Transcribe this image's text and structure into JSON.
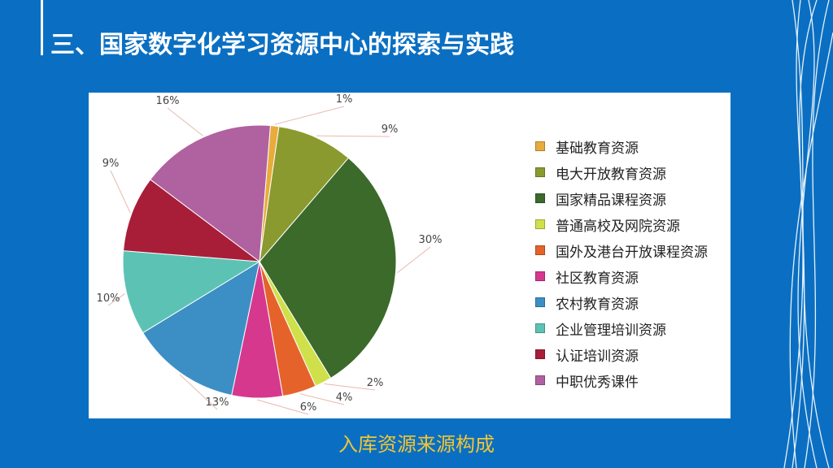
{
  "header": {
    "title": "三、国家数字化学习资源中心的探索与实践"
  },
  "caption": "入库资源来源构成",
  "colors": {
    "background": "#0a6fc2",
    "caption": "#f2c533"
  },
  "chart_data": {
    "type": "pie",
    "title": "",
    "legend_position": "right",
    "slices": [
      {
        "label": "基础教育资源",
        "value": 1,
        "display": "1%",
        "color": "#e8ab3c"
      },
      {
        "label": "电大开放教育资源",
        "value": 9,
        "display": "9%",
        "color": "#8b9a2e"
      },
      {
        "label": "国家精品课程资源",
        "value": 30,
        "display": "30%",
        "color": "#3b6a2a"
      },
      {
        "label": "普通高校及网院资源",
        "value": 2,
        "display": "2%",
        "color": "#cfe04a"
      },
      {
        "label": "国外及港台开放课程资源",
        "value": 4,
        "display": "4%",
        "color": "#e5632a"
      },
      {
        "label": "社区教育资源",
        "value": 6,
        "display": "6%",
        "color": "#d6388e"
      },
      {
        "label": "农村教育资源",
        "value": 13,
        "display": "13%",
        "color": "#3c8fc4"
      },
      {
        "label": "企业管理培训资源",
        "value": 10,
        "display": "10%",
        "color": "#5cc3b4"
      },
      {
        "label": "认证培训资源",
        "value": 9,
        "display": "9%",
        "color": "#a81e39"
      },
      {
        "label": "中职优秀课件",
        "value": 16,
        "display": "16%",
        "color": "#b0619f"
      }
    ]
  }
}
